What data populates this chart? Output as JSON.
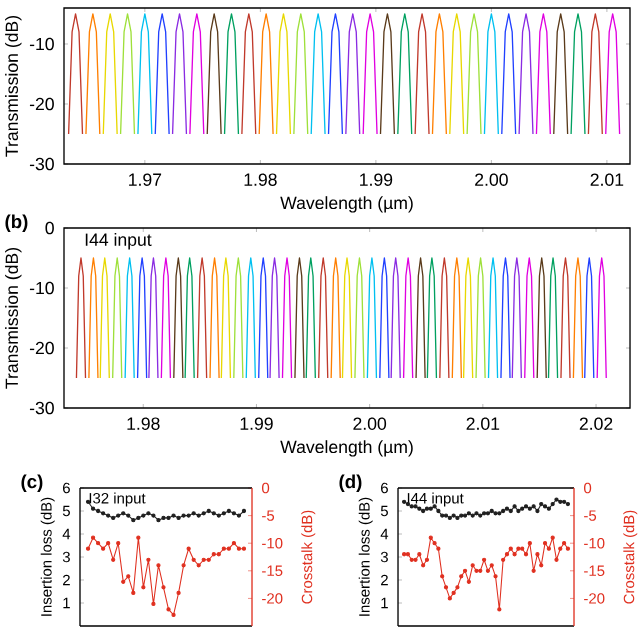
{
  "chart_data": [
    {
      "type": "line",
      "xlabel": "Wavelength (µm)",
      "ylabel": "Transmission (dB)",
      "xlim": [
        1.963,
        2.012
      ],
      "ylim": [
        -30,
        -4
      ],
      "xticks": [
        {
          "value": 1.97,
          "label": "1.97"
        },
        {
          "value": 1.98,
          "label": "1.98"
        },
        {
          "value": 1.99,
          "label": "1.99"
        },
        {
          "value": 2.0,
          "label": "2.00"
        },
        {
          "value": 2.01,
          "label": "2.01"
        }
      ],
      "yticks": [
        -30,
        -20,
        -10
      ],
      "series": [
        {
          "color": "#c0392b",
          "x": [
            1.9634,
            1.9637,
            1.964,
            1.9643,
            1.9646
          ],
          "values": [
            -25,
            -8,
            -5,
            -8,
            -25
          ]
        },
        {
          "color": "#ff7f00",
          "x": [
            1.9649,
            1.9652,
            1.9655,
            1.9658,
            1.9661
          ],
          "values": [
            -25,
            -8,
            -5,
            -8,
            -25
          ]
        },
        {
          "color": "#e8d800",
          "x": [
            1.9664,
            1.9667,
            1.967,
            1.9673,
            1.9676
          ],
          "values": [
            -25,
            -8,
            -5,
            -8,
            -25
          ]
        },
        {
          "color": "#9ee03a",
          "x": [
            1.9679,
            1.9682,
            1.9685,
            1.9688,
            1.9691
          ],
          "values": [
            -25,
            -8,
            -5,
            -8,
            -25
          ]
        },
        {
          "color": "#00c0f0",
          "x": [
            1.9694,
            1.9697,
            1.97,
            1.9703,
            1.9706
          ],
          "values": [
            -25,
            -8,
            -5,
            -8,
            -25
          ]
        },
        {
          "color": "#2040ff",
          "x": [
            1.9709,
            1.9712,
            1.9715,
            1.9718,
            1.9721
          ],
          "values": [
            -25,
            -8,
            -5,
            -8,
            -25
          ]
        },
        {
          "color": "#8a2be2",
          "x": [
            1.9724,
            1.9727,
            1.973,
            1.9733,
            1.9736
          ],
          "values": [
            -25,
            -8,
            -5,
            -8,
            -25
          ]
        },
        {
          "color": "#e000e0",
          "x": [
            1.9739,
            1.9742,
            1.9745,
            1.9748,
            1.9751
          ],
          "values": [
            -25,
            -8,
            -5,
            -8,
            -25
          ]
        },
        {
          "color": "#5a3a1a",
          "x": [
            1.9754,
            1.9757,
            1.976,
            1.9763,
            1.9766
          ],
          "values": [
            -25,
            -8,
            -5,
            -8,
            -25
          ]
        },
        {
          "color": "#00a060",
          "x": [
            1.9769,
            1.9772,
            1.9775,
            1.9778,
            1.9781
          ],
          "values": [
            -25,
            -8,
            -5,
            -8,
            -25
          ]
        },
        {
          "color": "#c0392b",
          "x": [
            1.9784,
            1.9787,
            1.979,
            1.9793,
            1.9796
          ],
          "values": [
            -25,
            -8,
            -5,
            -8,
            -25
          ]
        },
        {
          "color": "#ff7f00",
          "x": [
            1.9799,
            1.9802,
            1.9805,
            1.9808,
            1.9811
          ],
          "values": [
            -25,
            -8,
            -5,
            -8,
            -25
          ]
        },
        {
          "color": "#e8d800",
          "x": [
            1.9814,
            1.9817,
            1.982,
            1.9823,
            1.9826
          ],
          "values": [
            -25,
            -8,
            -5,
            -8,
            -25
          ]
        },
        {
          "color": "#9ee03a",
          "x": [
            1.9829,
            1.9832,
            1.9835,
            1.9838,
            1.9841
          ],
          "values": [
            -25,
            -8,
            -5,
            -8,
            -25
          ]
        },
        {
          "color": "#00c0f0",
          "x": [
            1.9844,
            1.9847,
            1.985,
            1.9853,
            1.9856
          ],
          "values": [
            -25,
            -8,
            -5,
            -8,
            -25
          ]
        },
        {
          "color": "#2040ff",
          "x": [
            1.9859,
            1.9862,
            1.9865,
            1.9868,
            1.9871
          ],
          "values": [
            -25,
            -8,
            -5,
            -8,
            -25
          ]
        },
        {
          "color": "#8a2be2",
          "x": [
            1.9874,
            1.9877,
            1.988,
            1.9883,
            1.9886
          ],
          "values": [
            -25,
            -8,
            -5,
            -8,
            -25
          ]
        },
        {
          "color": "#e000e0",
          "x": [
            1.9889,
            1.9892,
            1.9895,
            1.9898,
            1.9901
          ],
          "values": [
            -25,
            -8,
            -5,
            -8,
            -25
          ]
        },
        {
          "color": "#5a3a1a",
          "x": [
            1.9904,
            1.9907,
            1.991,
            1.9913,
            1.9916
          ],
          "values": [
            -25,
            -8,
            -5,
            -8,
            -25
          ]
        },
        {
          "color": "#00a060",
          "x": [
            1.9919,
            1.9922,
            1.9925,
            1.9928,
            1.9931
          ],
          "values": [
            -25,
            -8,
            -5,
            -8,
            -25
          ]
        },
        {
          "color": "#c0392b",
          "x": [
            1.9934,
            1.9937,
            1.994,
            1.9943,
            1.9946
          ],
          "values": [
            -25,
            -8,
            -5,
            -8,
            -25
          ]
        },
        {
          "color": "#ff7f00",
          "x": [
            1.9949,
            1.9952,
            1.9955,
            1.9958,
            1.9961
          ],
          "values": [
            -25,
            -8,
            -5,
            -8,
            -25
          ]
        },
        {
          "color": "#e8d800",
          "x": [
            1.9964,
            1.9967,
            1.997,
            1.9973,
            1.9976
          ],
          "values": [
            -25,
            -8,
            -5,
            -8,
            -25
          ]
        },
        {
          "color": "#9ee03a",
          "x": [
            1.9979,
            1.9982,
            1.9985,
            1.9988,
            1.9991
          ],
          "values": [
            -25,
            -8,
            -5,
            -8,
            -25
          ]
        },
        {
          "color": "#00c0f0",
          "x": [
            1.9994,
            1.9997,
            2.0,
            2.0003,
            2.0006
          ],
          "values": [
            -25,
            -8,
            -5,
            -8,
            -25
          ]
        },
        {
          "color": "#2040ff",
          "x": [
            2.0009,
            2.0012,
            2.0015,
            2.0018,
            2.0021
          ],
          "values": [
            -25,
            -8,
            -5,
            -8,
            -25
          ]
        },
        {
          "color": "#8a2be2",
          "x": [
            2.0024,
            2.0027,
            2.003,
            2.0033,
            2.0036
          ],
          "values": [
            -25,
            -8,
            -5,
            -8,
            -25
          ]
        },
        {
          "color": "#e000e0",
          "x": [
            2.0039,
            2.0042,
            2.0045,
            2.0048,
            2.0051
          ],
          "values": [
            -25,
            -8,
            -5,
            -8,
            -25
          ]
        },
        {
          "color": "#5a3a1a",
          "x": [
            2.0054,
            2.0057,
            2.006,
            2.0063,
            2.0066
          ],
          "values": [
            -25,
            -8,
            -5,
            -8,
            -25
          ]
        },
        {
          "color": "#00a060",
          "x": [
            2.0069,
            2.0072,
            2.0075,
            2.0078,
            2.0081
          ],
          "values": [
            -25,
            -8,
            -5,
            -8,
            -25
          ]
        },
        {
          "color": "#c0392b",
          "x": [
            2.0084,
            2.0087,
            2.009,
            2.0093,
            2.0096
          ],
          "values": [
            -25,
            -8,
            -5,
            -8,
            -25
          ]
        },
        {
          "color": "#e000e0",
          "x": [
            2.0099,
            2.0102,
            2.0105,
            2.0108,
            2.0111
          ],
          "values": [
            -25,
            -8,
            -5,
            -8,
            -25
          ]
        }
      ]
    },
    {
      "type": "line",
      "xlabel": "Wavelength (µm)",
      "ylabel": "Transmission (dB)",
      "annotations": [
        "(b)",
        "I44 input"
      ],
      "xlim": [
        1.973,
        2.023
      ],
      "ylim": [
        -30,
        0
      ],
      "xticks": [
        {
          "value": 1.98,
          "label": "1.98"
        },
        {
          "value": 1.99,
          "label": "1.99"
        },
        {
          "value": 2.0,
          "label": "2.00"
        },
        {
          "value": 2.01,
          "label": "2.01"
        },
        {
          "value": 2.02,
          "label": "2.02"
        }
      ],
      "yticks": [
        -30,
        -20,
        -10,
        0
      ],
      "series": [
        {
          "color": "#c0392b",
          "x": [
            1.9741,
            1.9743,
            1.9745,
            1.9747,
            1.9749
          ],
          "values": [
            -25,
            -8,
            -5,
            -8,
            -25
          ]
        },
        {
          "color": "#ff7f00",
          "x": [
            1.9752,
            1.9754,
            1.9756,
            1.9758,
            1.976
          ],
          "values": [
            -25,
            -8,
            -5,
            -8,
            -25
          ]
        },
        {
          "color": "#e8d800",
          "x": [
            1.9762,
            1.9764,
            1.9766,
            1.9768,
            1.977
          ],
          "values": [
            -25,
            -8,
            -5,
            -8,
            -25
          ]
        },
        {
          "color": "#9ee03a",
          "x": [
            1.9773,
            1.9775,
            1.9777,
            1.9779,
            1.9781
          ],
          "values": [
            -25,
            -8,
            -5,
            -8,
            -25
          ]
        },
        {
          "color": "#00c0f0",
          "x": [
            1.9784,
            1.9786,
            1.9788,
            1.979,
            1.9792
          ],
          "values": [
            -25,
            -8,
            -5,
            -8,
            -25
          ]
        },
        {
          "color": "#2040ff",
          "x": [
            1.9795,
            1.9797,
            1.9799,
            1.9801,
            1.9803
          ],
          "values": [
            -25,
            -8,
            -5,
            -8,
            -25
          ]
        },
        {
          "color": "#8a2be2",
          "x": [
            1.9805,
            1.9807,
            1.9809,
            1.9811,
            1.9813
          ],
          "values": [
            -25,
            -8,
            -5,
            -8,
            -25
          ]
        },
        {
          "color": "#e000e0",
          "x": [
            1.9816,
            1.9818,
            1.982,
            1.9822,
            1.9824
          ],
          "values": [
            -25,
            -8,
            -5,
            -8,
            -25
          ]
        },
        {
          "color": "#5a3a1a",
          "x": [
            1.9827,
            1.9829,
            1.9831,
            1.9833,
            1.9835
          ],
          "values": [
            -25,
            -8,
            -5,
            -8,
            -25
          ]
        },
        {
          "color": "#00a060",
          "x": [
            1.9837,
            1.9839,
            1.9841,
            1.9843,
            1.9845
          ],
          "values": [
            -25,
            -8,
            -5,
            -8,
            -25
          ]
        },
        {
          "color": "#c0392b",
          "x": [
            1.9848,
            1.985,
            1.9852,
            1.9854,
            1.9856
          ],
          "values": [
            -25,
            -8,
            -5,
            -8,
            -25
          ]
        },
        {
          "color": "#ff7f00",
          "x": [
            1.9859,
            1.9861,
            1.9863,
            1.9865,
            1.9867
          ],
          "values": [
            -25,
            -8,
            -5,
            -8,
            -25
          ]
        },
        {
          "color": "#e8d800",
          "x": [
            1.9869,
            1.9871,
            1.9873,
            1.9875,
            1.9877
          ],
          "values": [
            -25,
            -8,
            -5,
            -8,
            -25
          ]
        },
        {
          "color": "#9ee03a",
          "x": [
            1.988,
            1.9882,
            1.9884,
            1.9886,
            1.9888
          ],
          "values": [
            -25,
            -8,
            -5,
            -8,
            -25
          ]
        },
        {
          "color": "#00c0f0",
          "x": [
            1.9891,
            1.9893,
            1.9895,
            1.9897,
            1.9899
          ],
          "values": [
            -25,
            -8,
            -5,
            -8,
            -25
          ]
        },
        {
          "color": "#2040ff",
          "x": [
            1.9902,
            1.9904,
            1.9906,
            1.9908,
            1.991
          ],
          "values": [
            -25,
            -8,
            -5,
            -8,
            -25
          ]
        },
        {
          "color": "#8a2be2",
          "x": [
            1.9912,
            1.9914,
            1.9916,
            1.9918,
            1.992
          ],
          "values": [
            -25,
            -8,
            -5,
            -8,
            -25
          ]
        },
        {
          "color": "#e000e0",
          "x": [
            1.9923,
            1.9925,
            1.9927,
            1.9929,
            1.9931
          ],
          "values": [
            -25,
            -8,
            -5,
            -8,
            -25
          ]
        },
        {
          "color": "#5a3a1a",
          "x": [
            1.9934,
            1.9936,
            1.9938,
            1.994,
            1.9942
          ],
          "values": [
            -25,
            -8,
            -5,
            -8,
            -25
          ]
        },
        {
          "color": "#00a060",
          "x": [
            1.9944,
            1.9946,
            1.9948,
            1.995,
            1.9952
          ],
          "values": [
            -25,
            -8,
            -5,
            -8,
            -25
          ]
        },
        {
          "color": "#c0392b",
          "x": [
            1.9955,
            1.9957,
            1.9959,
            1.9961,
            1.9963
          ],
          "values": [
            -25,
            -8,
            -5,
            -8,
            -25
          ]
        },
        {
          "color": "#ff7f00",
          "x": [
            1.9966,
            1.9968,
            1.997,
            1.9972,
            1.9974
          ],
          "values": [
            -25,
            -8,
            -5,
            -8,
            -25
          ]
        },
        {
          "color": "#e8d800",
          "x": [
            1.9976,
            1.9978,
            1.998,
            1.9982,
            1.9984
          ],
          "values": [
            -25,
            -8,
            -5,
            -8,
            -25
          ]
        },
        {
          "color": "#9ee03a",
          "x": [
            1.9987,
            1.9989,
            1.9991,
            1.9993,
            1.9995
          ],
          "values": [
            -25,
            -8,
            -5,
            -8,
            -25
          ]
        },
        {
          "color": "#00c0f0",
          "x": [
            1.9998,
            2.0,
            2.0002,
            2.0004,
            2.0006
          ],
          "values": [
            -25,
            -8,
            -5,
            -8,
            -25
          ]
        },
        {
          "color": "#2040ff",
          "x": [
            2.0009,
            2.0011,
            2.0013,
            2.0015,
            2.0017
          ],
          "values": [
            -25,
            -8,
            -5,
            -8,
            -25
          ]
        },
        {
          "color": "#8a2be2",
          "x": [
            2.0019,
            2.0021,
            2.0023,
            2.0025,
            2.0027
          ],
          "values": [
            -25,
            -8,
            -5,
            -8,
            -25
          ]
        },
        {
          "color": "#e000e0",
          "x": [
            2.003,
            2.0032,
            2.0034,
            2.0036,
            2.0038
          ],
          "values": [
            -25,
            -8,
            -5,
            -8,
            -25
          ]
        },
        {
          "color": "#5a3a1a",
          "x": [
            2.0041,
            2.0043,
            2.0045,
            2.0047,
            2.0049
          ],
          "values": [
            -25,
            -8,
            -5,
            -8,
            -25
          ]
        },
        {
          "color": "#00a060",
          "x": [
            2.0051,
            2.0053,
            2.0055,
            2.0057,
            2.0059
          ],
          "values": [
            -25,
            -8,
            -5,
            -8,
            -25
          ]
        },
        {
          "color": "#c0392b",
          "x": [
            2.0062,
            2.0064,
            2.0066,
            2.0068,
            2.007
          ],
          "values": [
            -25,
            -8,
            -5,
            -8,
            -25
          ]
        },
        {
          "color": "#ff7f00",
          "x": [
            2.0073,
            2.0075,
            2.0077,
            2.0079,
            2.0081
          ],
          "values": [
            -25,
            -8,
            -5,
            -8,
            -25
          ]
        },
        {
          "color": "#e8d800",
          "x": [
            2.0083,
            2.0085,
            2.0087,
            2.0089,
            2.0091
          ],
          "values": [
            -25,
            -8,
            -5,
            -8,
            -25
          ]
        },
        {
          "color": "#9ee03a",
          "x": [
            2.0094,
            2.0096,
            2.0098,
            2.01,
            2.0102
          ],
          "values": [
            -25,
            -8,
            -5,
            -8,
            -25
          ]
        },
        {
          "color": "#00c0f0",
          "x": [
            2.0105,
            2.0107,
            2.0109,
            2.0111,
            2.0113
          ],
          "values": [
            -25,
            -8,
            -5,
            -8,
            -25
          ]
        },
        {
          "color": "#2040ff",
          "x": [
            2.0116,
            2.0118,
            2.012,
            2.0122,
            2.0124
          ],
          "values": [
            -25,
            -8,
            -5,
            -8,
            -25
          ]
        },
        {
          "color": "#8a2be2",
          "x": [
            2.0126,
            2.0128,
            2.013,
            2.0132,
            2.0134
          ],
          "values": [
            -25,
            -8,
            -5,
            -8,
            -25
          ]
        },
        {
          "color": "#e000e0",
          "x": [
            2.0137,
            2.0139,
            2.0141,
            2.0143,
            2.0145
          ],
          "values": [
            -25,
            -8,
            -5,
            -8,
            -25
          ]
        },
        {
          "color": "#5a3a1a",
          "x": [
            2.0148,
            2.015,
            2.0152,
            2.0154,
            2.0156
          ],
          "values": [
            -25,
            -8,
            -5,
            -8,
            -25
          ]
        },
        {
          "color": "#00a060",
          "x": [
            2.0158,
            2.016,
            2.0162,
            2.0164,
            2.0166
          ],
          "values": [
            -25,
            -8,
            -5,
            -8,
            -25
          ]
        },
        {
          "color": "#c0392b",
          "x": [
            2.0169,
            2.0171,
            2.0173,
            2.0175,
            2.0177
          ],
          "values": [
            -25,
            -8,
            -5,
            -8,
            -25
          ]
        },
        {
          "color": "#ff7f00",
          "x": [
            2.018,
            2.0182,
            2.0184,
            2.0186,
            2.0188
          ],
          "values": [
            -25,
            -8,
            -5,
            -8,
            -25
          ]
        },
        {
          "color": "#2040ff",
          "x": [
            2.019,
            2.0192,
            2.0194,
            2.0196,
            2.0198
          ],
          "values": [
            -25,
            -8,
            -5,
            -8,
            -25
          ]
        },
        {
          "color": "#e000e0",
          "x": [
            2.0201,
            2.0203,
            2.0205,
            2.0207,
            2.0209
          ],
          "values": [
            -25,
            -8,
            -5,
            -8,
            -25
          ]
        }
      ]
    },
    {
      "type": "line",
      "marker": "circle",
      "ylabel": "Insertion loss (dB)",
      "y2label": "Crosstalk (dB)",
      "annotations": [
        "(c)",
        "I32 input"
      ],
      "categories": [
        null,
        null,
        null,
        null,
        null,
        null,
        null,
        null,
        null,
        null,
        null,
        null,
        null,
        null,
        null,
        null,
        null,
        null,
        null,
        null,
        null,
        null,
        null,
        null,
        null,
        null,
        null,
        null,
        null,
        null,
        null,
        null
      ],
      "ylim": [
        0,
        6
      ],
      "yticks": [
        1,
        2,
        3,
        4,
        5,
        6
      ],
      "y2lim": [
        -25,
        0
      ],
      "y2ticks": [
        -20,
        -15,
        -10,
        -5,
        0
      ],
      "series": [
        {
          "color": "#202020",
          "values": [
            5.4,
            5.1,
            5.0,
            4.9,
            4.8,
            4.7,
            4.8,
            4.9,
            4.8,
            4.6,
            4.7,
            4.8,
            4.9,
            4.8,
            4.6,
            4.7,
            4.7,
            4.8,
            4.7,
            4.8,
            4.8,
            4.9,
            4.8,
            4.9,
            5.0,
            4.9,
            4.8,
            4.9,
            5.0,
            4.9,
            4.8,
            5.0
          ]
        },
        {
          "color": "#e03020",
          "axis": "y2",
          "values": [
            -11,
            -9,
            -10,
            -11,
            -10,
            -13,
            -10,
            -17,
            -16,
            -19,
            -9,
            -18,
            -13,
            -21,
            -14,
            -18,
            -22,
            -23,
            -19,
            -14,
            -11,
            -13,
            -14,
            -13,
            -13,
            -12,
            -12,
            -11,
            -11,
            -10,
            -11,
            -11
          ]
        }
      ]
    },
    {
      "type": "line",
      "marker": "circle",
      "ylabel": "Insertion loss (dB)",
      "y2label": "Crosstalk (dB)",
      "annotations": [
        "(d)",
        "I44 input"
      ],
      "categories": [
        null,
        null,
        null,
        null,
        null,
        null,
        null,
        null,
        null,
        null,
        null,
        null,
        null,
        null,
        null,
        null,
        null,
        null,
        null,
        null,
        null,
        null,
        null,
        null,
        null,
        null,
        null,
        null,
        null,
        null,
        null,
        null,
        null,
        null,
        null,
        null,
        null,
        null,
        null,
        null,
        null,
        null,
        null,
        null
      ],
      "ylim": [
        0,
        6
      ],
      "yticks": [
        1,
        2,
        3,
        4,
        5,
        6
      ],
      "y2lim": [
        -25,
        0
      ],
      "y2ticks": [
        -20,
        -15,
        -10,
        -5,
        0
      ],
      "series": [
        {
          "color": "#202020",
          "values": [
            5.4,
            5.3,
            5.2,
            5.2,
            5.1,
            5.0,
            5.1,
            5.1,
            5.2,
            5.0,
            4.8,
            4.8,
            4.7,
            4.8,
            4.7,
            4.8,
            4.8,
            4.9,
            4.8,
            4.9,
            4.8,
            4.9,
            4.9,
            5.0,
            4.9,
            4.9,
            5.0,
            5.1,
            5.0,
            5.2,
            5.0,
            5.1,
            5.2,
            5.1,
            5.2,
            5.0,
            5.3,
            5.2,
            5.1,
            5.3,
            5.5,
            5.4,
            5.4,
            5.3
          ]
        },
        {
          "color": "#e03020",
          "axis": "y2",
          "values": [
            -12,
            -12,
            -13,
            -13,
            -12,
            -14,
            -13,
            -9,
            -10,
            -11,
            -16,
            -18,
            -20,
            -19,
            -18,
            -16,
            -15,
            -17,
            -14,
            -15,
            -15,
            -13,
            -15,
            -14,
            -16,
            -22,
            -13,
            -12,
            -11,
            -12,
            -11,
            -11,
            -12,
            -10,
            -15,
            -12,
            -14,
            -10,
            -11,
            -9,
            -13,
            -11,
            -10,
            -11
          ]
        }
      ]
    }
  ]
}
